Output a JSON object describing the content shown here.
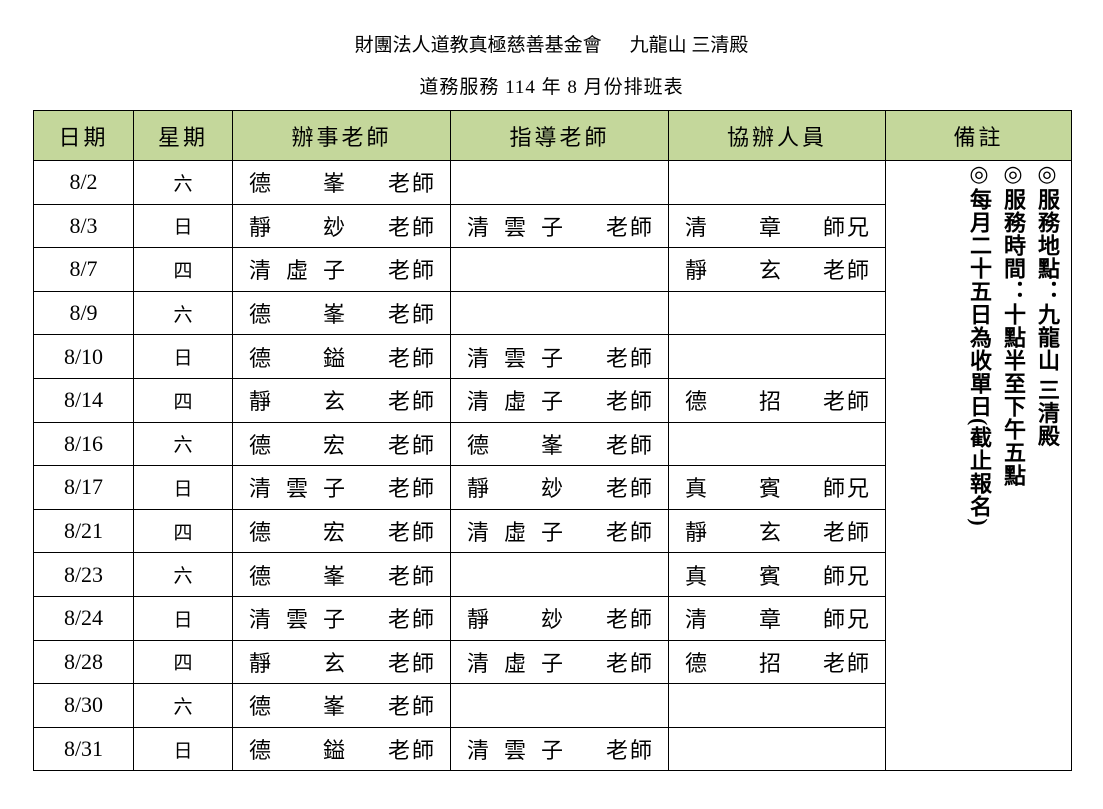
{
  "header": {
    "org": "財團法人道教真極慈善基金會",
    "location": "九龍山 三清殿",
    "subtitle": "道務服務 114 年 8 月份排班表"
  },
  "columns": [
    "日期",
    "星期",
    "辦事老師",
    "指導老師",
    "協辦人員",
    "備註"
  ],
  "rows": [
    {
      "date": "8/2",
      "weekday": "六",
      "officiant": {
        "name": "德峯",
        "title": "老師"
      },
      "guide": null,
      "assistant": null
    },
    {
      "date": "8/3",
      "weekday": "日",
      "officiant": {
        "name": "靜玅",
        "title": "老師"
      },
      "guide": {
        "name": "清雲子",
        "title": "老師"
      },
      "assistant": {
        "name": "清章",
        "title": "師兄"
      }
    },
    {
      "date": "8/7",
      "weekday": "四",
      "officiant": {
        "name": "清虛子",
        "title": "老師"
      },
      "guide": null,
      "assistant": {
        "name": "靜玄",
        "title": "老師"
      }
    },
    {
      "date": "8/9",
      "weekday": "六",
      "officiant": {
        "name": "德峯",
        "title": "老師"
      },
      "guide": null,
      "assistant": null
    },
    {
      "date": "8/10",
      "weekday": "日",
      "officiant": {
        "name": "德鎰",
        "title": "老師"
      },
      "guide": {
        "name": "清雲子",
        "title": "老師"
      },
      "assistant": null
    },
    {
      "date": "8/14",
      "weekday": "四",
      "officiant": {
        "name": "靜玄",
        "title": "老師"
      },
      "guide": {
        "name": "清虛子",
        "title": "老師"
      },
      "assistant": {
        "name": "德招",
        "title": "老師"
      }
    },
    {
      "date": "8/16",
      "weekday": "六",
      "officiant": {
        "name": "德宏",
        "title": "老師"
      },
      "guide": {
        "name": "德峯",
        "title": "老師"
      },
      "assistant": null
    },
    {
      "date": "8/17",
      "weekday": "日",
      "officiant": {
        "name": "清雲子",
        "title": "老師"
      },
      "guide": {
        "name": "靜玅",
        "title": "老師"
      },
      "assistant": {
        "name": "真賓",
        "title": "師兄"
      }
    },
    {
      "date": "8/21",
      "weekday": "四",
      "officiant": {
        "name": "德宏",
        "title": "老師"
      },
      "guide": {
        "name": "清虛子",
        "title": "老師"
      },
      "assistant": {
        "name": "靜玄",
        "title": "老師"
      }
    },
    {
      "date": "8/23",
      "weekday": "六",
      "officiant": {
        "name": "德峯",
        "title": "老師"
      },
      "guide": null,
      "assistant": {
        "name": "真賓",
        "title": "師兄"
      }
    },
    {
      "date": "8/24",
      "weekday": "日",
      "officiant": {
        "name": "清雲子",
        "title": "老師"
      },
      "guide": {
        "name": "靜玅",
        "title": "老師"
      },
      "assistant": {
        "name": "清章",
        "title": "師兄"
      }
    },
    {
      "date": "8/28",
      "weekday": "四",
      "officiant": {
        "name": "靜玄",
        "title": "老師"
      },
      "guide": {
        "name": "清虛子",
        "title": "老師"
      },
      "assistant": {
        "name": "德招",
        "title": "老師"
      }
    },
    {
      "date": "8/30",
      "weekday": "六",
      "officiant": {
        "name": "德峯",
        "title": "老師"
      },
      "guide": null,
      "assistant": null
    },
    {
      "date": "8/31",
      "weekday": "日",
      "officiant": {
        "name": "德鎰",
        "title": "老師"
      },
      "guide": {
        "name": "清雲子",
        "title": "老師"
      },
      "assistant": null
    }
  ],
  "remarks": [
    "◎服務地點：九龍山 三清殿",
    "◎服務時間：十點半至下午五點",
    "◎每月二十五日為收單日(截止報名)"
  ],
  "colors": {
    "header_bg": "#c4d79b"
  }
}
